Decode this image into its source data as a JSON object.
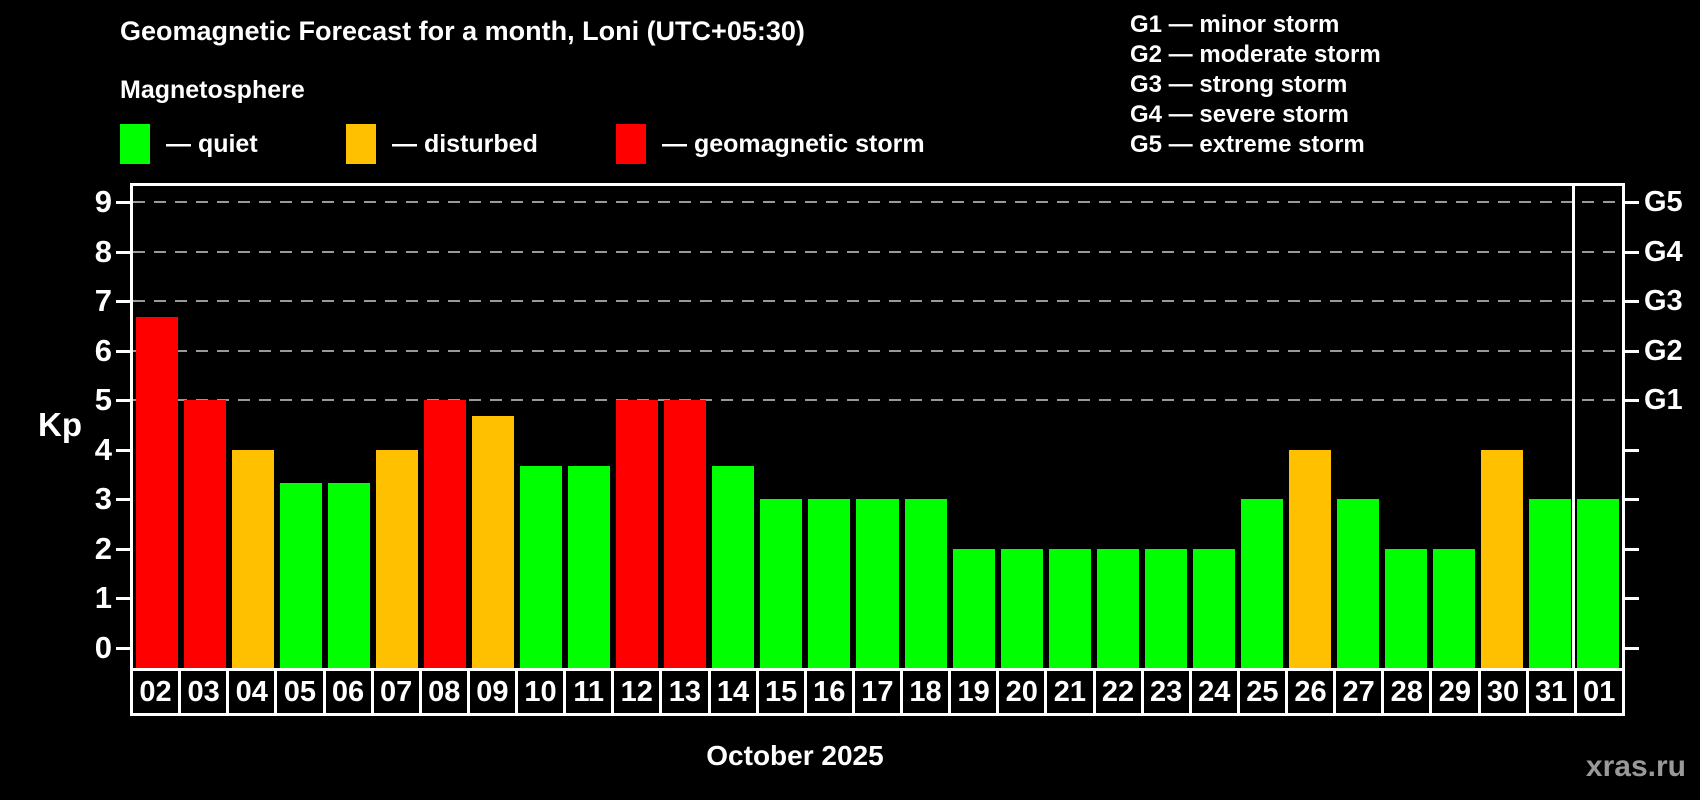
{
  "header": {
    "title": "Geomagnetic Forecast for a month, Loni (UTC+05:30)",
    "subtitle": "Magnetosphere"
  },
  "legend": {
    "items": [
      {
        "id": "quiet",
        "label": "— quiet",
        "color": "#00ff00"
      },
      {
        "id": "disturbed",
        "label": "— disturbed",
        "color": "#ffc000"
      },
      {
        "id": "storm",
        "label": "— geomagnetic storm",
        "color": "#ff0000"
      }
    ]
  },
  "storm_scale": [
    "G1 — minor storm",
    "G2 — moderate storm",
    "G3 — strong storm",
    "G4 — severe storm",
    "G5 — extreme storm"
  ],
  "axis": {
    "ylabel": "Kp",
    "yticks": [
      0,
      1,
      2,
      3,
      4,
      5,
      6,
      7,
      8,
      9
    ],
    "right_ticks": [
      {
        "kp": 5,
        "label": "G1"
      },
      {
        "kp": 6,
        "label": "G2"
      },
      {
        "kp": 7,
        "label": "G3"
      },
      {
        "kp": 8,
        "label": "G4"
      },
      {
        "kp": 9,
        "label": "G5"
      }
    ],
    "xlabel": "October 2025"
  },
  "watermark": "xras.ru",
  "chart_data": {
    "type": "bar",
    "title": "Geomagnetic Forecast for a month, Loni (UTC+05:30)",
    "ylabel": "Kp",
    "xlabel": "October 2025",
    "ylim": [
      0,
      9.4
    ],
    "grid": "dashed horizontal at Kp 5-9 only",
    "legend_position": "top-left",
    "categories": [
      "02",
      "03",
      "04",
      "05",
      "06",
      "07",
      "08",
      "09",
      "10",
      "11",
      "12",
      "13",
      "14",
      "15",
      "16",
      "17",
      "18",
      "19",
      "20",
      "21",
      "22",
      "23",
      "24",
      "25",
      "26",
      "27",
      "28",
      "29",
      "30",
      "31",
      "01"
    ],
    "values": [
      6.67,
      5,
      4,
      3.33,
      3.33,
      4,
      5,
      4.67,
      3.67,
      3.67,
      5,
      5,
      3.67,
      3,
      3,
      3,
      3,
      2,
      2,
      2,
      2,
      2,
      2,
      3,
      4,
      3,
      2,
      2,
      4,
      3,
      3
    ],
    "statuses": [
      "storm",
      "storm",
      "disturbed",
      "quiet",
      "quiet",
      "disturbed",
      "storm",
      "disturbed",
      "quiet",
      "quiet",
      "storm",
      "storm",
      "quiet",
      "quiet",
      "quiet",
      "quiet",
      "quiet",
      "quiet",
      "quiet",
      "quiet",
      "quiet",
      "quiet",
      "quiet",
      "quiet",
      "disturbed",
      "quiet",
      "quiet",
      "quiet",
      "disturbed",
      "quiet",
      "quiet"
    ],
    "gridlines_kp": [
      5,
      6,
      7,
      8,
      9
    ],
    "month_boundary_index": 30
  }
}
